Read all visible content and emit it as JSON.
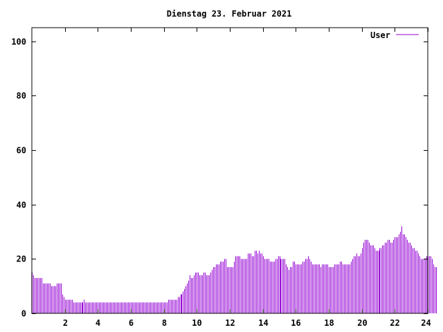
{
  "chart_data": {
    "type": "bar",
    "title": "Dienstag 23. Februar 2021",
    "xlabel": "",
    "ylabel": "",
    "xlim": [
      0,
      24
    ],
    "ylim": [
      0,
      105
    ],
    "x_ticks": [
      2,
      4,
      6,
      8,
      10,
      12,
      14,
      16,
      18,
      20,
      22,
      24
    ],
    "y_ticks": [
      0,
      20,
      40,
      60,
      80,
      100
    ],
    "grid": false,
    "legend_position": "top-right",
    "series": [
      {
        "name": "User",
        "color": "#9400d3",
        "samples_per_hour": 12,
        "values": [
          15,
          14,
          13,
          13,
          13,
          13,
          13,
          13,
          11,
          11,
          11,
          11,
          11,
          11,
          10,
          10,
          10,
          10,
          11,
          11,
          11,
          11,
          7,
          6,
          5,
          5,
          5,
          5,
          5,
          5,
          4,
          4,
          4,
          4,
          4,
          4,
          4,
          4,
          5,
          4,
          4,
          4,
          4,
          4,
          4,
          4,
          4,
          4,
          4,
          4,
          4,
          4,
          4,
          4,
          4,
          4,
          4,
          4,
          4,
          4,
          4,
          4,
          4,
          4,
          4,
          4,
          4,
          4,
          4,
          4,
          4,
          4,
          4,
          4,
          4,
          4,
          4,
          4,
          4,
          4,
          4,
          4,
          4,
          4,
          4,
          4,
          4,
          4,
          4,
          4,
          4,
          4,
          4,
          4,
          4,
          4,
          4,
          4,
          4,
          5,
          5,
          5,
          5,
          5,
          5,
          5,
          6,
          6,
          7,
          7,
          8,
          9,
          10,
          11,
          12,
          14,
          13,
          13,
          14,
          15,
          15,
          15,
          14,
          14,
          14,
          15,
          15,
          14,
          14,
          14,
          15,
          16,
          17,
          17,
          18,
          18,
          18,
          19,
          19,
          19,
          20,
          20,
          17,
          17,
          17,
          17,
          17,
          19,
          21,
          21,
          21,
          21,
          20,
          20,
          20,
          20,
          20,
          22,
          22,
          22,
          21,
          21,
          23,
          23,
          22,
          23,
          22,
          22,
          21,
          20,
          20,
          20,
          20,
          19,
          19,
          19,
          19,
          20,
          20,
          21,
          21,
          20,
          20,
          20,
          20,
          18,
          17,
          16,
          17,
          17,
          19,
          19,
          18,
          18,
          18,
          18,
          18,
          19,
          19,
          20,
          20,
          21,
          20,
          19,
          18,
          18,
          18,
          18,
          18,
          18,
          17,
          18,
          18,
          18,
          18,
          18,
          17,
          17,
          17,
          17,
          18,
          18,
          18,
          18,
          19,
          19,
          18,
          18,
          18,
          18,
          18,
          18,
          19,
          20,
          21,
          21,
          22,
          21,
          21,
          22,
          24,
          26,
          27,
          27,
          27,
          26,
          25,
          25,
          25,
          24,
          23,
          23,
          23,
          24,
          24,
          25,
          25,
          26,
          26,
          27,
          27,
          26,
          26,
          27,
          28,
          28,
          28,
          29,
          30,
          32,
          29,
          29,
          28,
          27,
          26,
          26,
          25,
          24,
          24,
          23,
          23,
          22,
          21,
          20,
          20,
          20,
          20,
          21,
          21,
          21,
          21,
          20,
          18,
          17,
          17
        ]
      }
    ]
  }
}
